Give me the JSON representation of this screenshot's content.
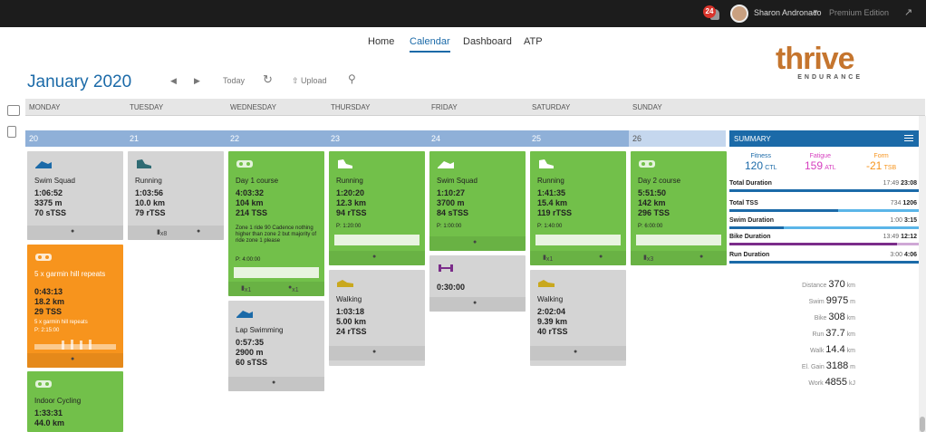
{
  "topbar": {
    "notifications": "24",
    "user": "Sharon Andronaco",
    "caret": "▼",
    "edition": "Premium Edition",
    "expand_icon": "↗"
  },
  "nav": {
    "home": "Home",
    "calendar": "Calendar",
    "dashboard": "Dashboard",
    "atp": "ATP"
  },
  "logo": {
    "word": "thrive",
    "sub": "ENDURANCE"
  },
  "month": "January 2020",
  "tools": {
    "prev": "◀",
    "next": "▶",
    "today": "Today",
    "refresh": "↻",
    "upload": "Upload",
    "search": "⚲"
  },
  "days": [
    "MONDAY",
    "TUESDAY",
    "WEDNESDAY",
    "THURSDAY",
    "FRIDAY",
    "SATURDAY",
    "SUNDAY"
  ],
  "dates": [
    "20",
    "21",
    "22",
    "23",
    "24",
    "25",
    "26"
  ],
  "cards": {
    "mon1": {
      "title": "Swim Squad",
      "s1": "1:06:52",
      "s2": "3375 m",
      "s3": "70 sTSS"
    },
    "mon2": {
      "title": "5 x garmin hill repeats",
      "s1": "0:43:13",
      "s2": "18.2 km",
      "s3": "29 TSS",
      "note": "5 x garmin hill repeats",
      "plan": "P: 2:15:00"
    },
    "mon3": {
      "title": "Indoor Cycling",
      "s1": "1:33:31",
      "s2": "44.0 km"
    },
    "tue1": {
      "title": "Running",
      "s1": "1:03:56",
      "s2": "10.0 km",
      "s3": "79 rTSS",
      "shoe": "x8"
    },
    "wed1": {
      "title": "Day 1 course",
      "s1": "4:03:32",
      "s2": "104 km",
      "s3": "214 TSS",
      "note": "Zone 1 ride 90 Cadence nothing higher than zone 2 but majority of ride zone 1 please",
      "plan": "P: 4:00:00",
      "f1": "x1",
      "f2": "x1"
    },
    "wed2": {
      "title": "Lap Swimming",
      "s1": "0:57:35",
      "s2": "2900 m",
      "s3": "60 sTSS"
    },
    "thu1": {
      "title": "Running",
      "s1": "1:20:20",
      "s2": "12.3 km",
      "s3": "94 rTSS",
      "plan": "P: 1:20:00"
    },
    "thu2": {
      "title": "Walking",
      "s1": "1:03:18",
      "s2": "5.00 km",
      "s3": "24 rTSS"
    },
    "fri1": {
      "title": "Swim Squad",
      "s1": "1:10:27",
      "s2": "3700 m",
      "s3": "84 sTSS",
      "plan": "P: 1:00:00"
    },
    "fri2": {
      "s1": "0:30:00"
    },
    "sat1": {
      "title": "Running",
      "s1": "1:41:35",
      "s2": "15.4 km",
      "s3": "119 rTSS",
      "plan": "P: 1:40:00",
      "f1": "x1"
    },
    "sat2": {
      "title": "Walking",
      "s1": "2:02:04",
      "s2": "9.39 km",
      "s3": "40 rTSS"
    },
    "sun1": {
      "title": "Day 2 course",
      "s1": "5:51:50",
      "s2": "142 km",
      "s3": "296 TSS",
      "plan": "P: 6:00:00",
      "f1": "x3"
    }
  },
  "summary": {
    "header": "SUMMARY",
    "fitness_label": "Fitness",
    "fitness_value": "120",
    "fitness_unit": "CTL",
    "fatigue_label": "Fatigue",
    "fatigue_value": "159",
    "fatigue_unit": "ATL",
    "form_label": "Form",
    "form_value": "-21",
    "form_unit": "TSB",
    "rows": [
      {
        "label": "Total Duration",
        "plan": "17:49",
        "actual": "23:08"
      },
      {
        "label": "Total TSS",
        "plan": "734",
        "actual": "1206"
      },
      {
        "label": "Swim Duration",
        "plan": "1:00",
        "actual": "3:15"
      },
      {
        "label": "Bike Duration",
        "plan": "13:49",
        "actual": "12:12"
      },
      {
        "label": "Run Duration",
        "plan": "3:00",
        "actual": "4:06"
      }
    ],
    "totals": [
      {
        "label": "Distance",
        "value": "370",
        "unit": "km"
      },
      {
        "label": "Swim",
        "value": "9975",
        "unit": "m"
      },
      {
        "label": "Bike",
        "value": "308",
        "unit": "km"
      },
      {
        "label": "Run",
        "value": "37.7",
        "unit": "km"
      },
      {
        "label": "Walk",
        "value": "14.4",
        "unit": "km"
      },
      {
        "label": "El. Gain",
        "value": "3188",
        "unit": "m"
      },
      {
        "label": "Work",
        "value": "4855",
        "unit": "kJ"
      }
    ]
  },
  "colors": {
    "accent": "#1b6aa8",
    "green": "#72c04a",
    "orange": "#f7941d",
    "fitness": "#1b6aa8",
    "fatigue": "#d63fbf",
    "form": "#f7941d"
  }
}
